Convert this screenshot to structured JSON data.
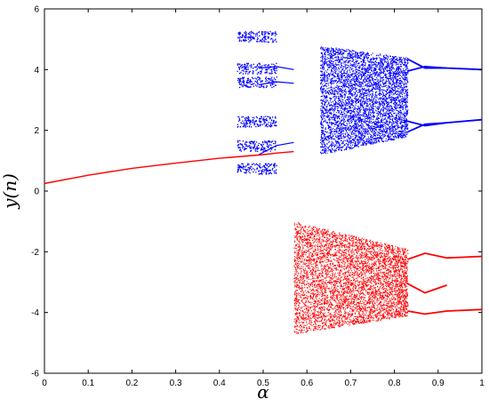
{
  "chart_data": {
    "type": "scatter",
    "title": "",
    "xlabel": "α",
    "ylabel": "y(n)",
    "xlim": [
      0,
      1
    ],
    "ylim": [
      -6,
      6
    ],
    "xticks": [
      "0",
      "0.1",
      "0.2",
      "0.3",
      "0.4",
      "0.5",
      "0.6",
      "0.7",
      "0.8",
      "0.9",
      "1"
    ],
    "yticks": [
      "-6",
      "-4",
      "-2",
      "0",
      "2",
      "4",
      "6"
    ],
    "grid": false,
    "colors": {
      "blue_branch": "#0000ff",
      "red_branch": "#ff0000"
    },
    "series": [
      {
        "color": "#ff0000",
        "description": "red branch: smooth fixed-point curve then period-doubling / chaotic band (negative y)",
        "curve": [
          [
            0,
            0.25
          ],
          [
            0.1,
            0.52
          ],
          [
            0.2,
            0.75
          ],
          [
            0.3,
            0.92
          ],
          [
            0.4,
            1.08
          ],
          [
            0.5,
            1.2
          ],
          [
            0.53,
            1.25
          ],
          [
            0.57,
            1.3
          ]
        ],
        "chaotic_band": {
          "x_range": [
            0.57,
            0.83
          ],
          "y_range": [
            -4.7,
            -1.0
          ]
        },
        "periodic_branches": [
          [
            [
              0.83,
              -2.25
            ],
            [
              0.87,
              -2.05
            ],
            [
              0.92,
              -2.2
            ],
            [
              1.0,
              -2.15
            ]
          ],
          [
            [
              0.83,
              -3.05
            ],
            [
              0.87,
              -3.35
            ],
            [
              0.92,
              -3.1
            ]
          ],
          [
            [
              0.83,
              -3.95
            ],
            [
              0.87,
              -4.05
            ],
            [
              0.92,
              -3.95
            ],
            [
              1.0,
              -3.9
            ]
          ]
        ]
      },
      {
        "color": "#0000ff",
        "description": "blue branch: periodic windows near α≈0.45–0.53 and chaotic band α≈0.63–0.83 (positive y)",
        "chaotic_band": {
          "x_range": [
            0.63,
            0.83
          ],
          "y_range": [
            1.2,
            4.8
          ]
        },
        "window_points": {
          "x_range": [
            0.44,
            0.53
          ],
          "y_levels": [
            0.75,
            1.5,
            2.3,
            3.6,
            4.05,
            5.1
          ]
        },
        "periodic_branches": [
          [
            [
              0.83,
              4.35
            ],
            [
              0.87,
              4.05
            ],
            [
              0.92,
              4.05
            ],
            [
              1.0,
              4.0
            ]
          ],
          [
            [
              0.83,
              3.95
            ],
            [
              0.87,
              4.1
            ],
            [
              0.92,
              4.05
            ]
          ],
          [
            [
              0.83,
              2.3
            ],
            [
              0.87,
              2.15
            ],
            [
              0.92,
              2.25
            ],
            [
              1.0,
              2.35
            ]
          ],
          [
            [
              0.83,
              1.95
            ],
            [
              0.87,
              2.2
            ],
            [
              0.92,
              2.25
            ]
          ]
        ]
      }
    ]
  }
}
